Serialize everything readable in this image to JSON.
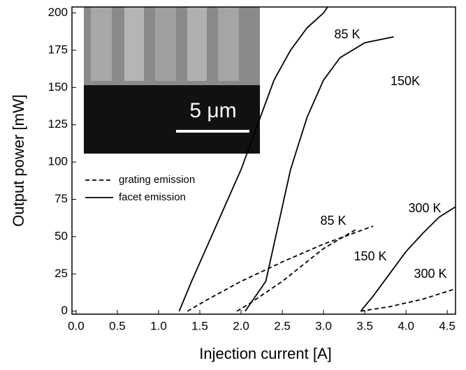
{
  "chart_data": {
    "type": "line",
    "x_label": "Injection current [A]",
    "y_label": "Output power [mW]",
    "xlim": [
      -0.05,
      4.6
    ],
    "ylim": [
      -2,
      204
    ],
    "xticks": [
      {
        "value": 0,
        "label": "0.0"
      },
      {
        "value": 0.5,
        "label": "0.5"
      },
      {
        "value": 1,
        "label": "1.0"
      },
      {
        "value": 1.5,
        "label": "1.5"
      },
      {
        "value": 2,
        "label": "2.0"
      },
      {
        "value": 2.5,
        "label": "2.5"
      },
      {
        "value": 3,
        "label": "3.0"
      },
      {
        "value": 3.5,
        "label": "3.5"
      },
      {
        "value": 4,
        "label": "4.0"
      },
      {
        "value": 4.5,
        "label": "4.5"
      }
    ],
    "yticks": [
      0,
      25,
      50,
      75,
      100,
      125,
      150,
      175,
      200
    ],
    "legend": [
      {
        "label": "grating emission",
        "dash": true
      },
      {
        "label": "facet emission",
        "dash": false
      }
    ],
    "series": [
      {
        "dash": false,
        "color": "#000000",
        "x": [
          1.25,
          1.4,
          1.6,
          1.8,
          2.0,
          2.2,
          2.4,
          2.6,
          2.8,
          3.0,
          3.05
        ],
        "values": [
          0,
          20,
          45,
          70,
          95,
          125,
          155,
          175,
          190,
          200,
          204
        ]
      },
      {
        "dash": false,
        "color": "#000000",
        "x": [
          2.05,
          2.3,
          2.4,
          2.5,
          2.6,
          2.8,
          3.0,
          3.2,
          3.5,
          3.85
        ],
        "values": [
          0,
          20,
          45,
          70,
          95,
          130,
          155,
          170,
          180,
          184
        ]
      },
      {
        "dash": false,
        "color": "#000000",
        "x": [
          3.45,
          3.6,
          3.8,
          4.0,
          4.2,
          4.4,
          4.6
        ],
        "values": [
          0,
          10,
          25,
          40,
          52,
          63,
          70
        ]
      },
      {
        "dash": true,
        "color": "#000000",
        "x": [
          1.35,
          1.6,
          2.0,
          2.5,
          3.0,
          3.4,
          3.6
        ],
        "values": [
          0,
          8,
          20,
          33,
          45,
          53,
          57
        ]
      },
      {
        "dash": true,
        "color": "#000000",
        "x": [
          1.95,
          2.1,
          2.5,
          3.0,
          3.4
        ],
        "values": [
          0,
          5,
          20,
          42,
          55
        ]
      },
      {
        "dash": true,
        "color": "#000000",
        "x": [
          3.45,
          3.8,
          4.2,
          4.6
        ],
        "values": [
          0,
          3,
          8,
          15
        ]
      }
    ],
    "annotations": [
      "85 K",
      "150K",
      "300 K",
      "85 K",
      "150 K",
      "300 K"
    ],
    "inset_scale": "5 μm"
  }
}
